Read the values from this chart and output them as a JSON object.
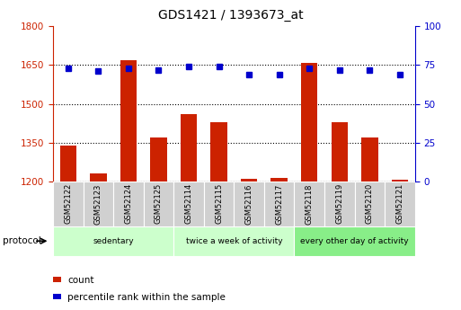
{
  "title": "GDS1421 / 1393673_at",
  "samples": [
    "GSM52122",
    "GSM52123",
    "GSM52124",
    "GSM52125",
    "GSM52114",
    "GSM52115",
    "GSM52116",
    "GSM52117",
    "GSM52118",
    "GSM52119",
    "GSM52120",
    "GSM52121"
  ],
  "bar_values": [
    1340,
    1230,
    1670,
    1370,
    1460,
    1430,
    1210,
    1215,
    1660,
    1430,
    1370,
    1205
  ],
  "dot_values": [
    73,
    71,
    73,
    72,
    74,
    74,
    69,
    69,
    73,
    72,
    72,
    69
  ],
  "ylim_left": [
    1200,
    1800
  ],
  "ylim_right": [
    0,
    100
  ],
  "yticks_left": [
    1200,
    1350,
    1500,
    1650,
    1800
  ],
  "yticks_right": [
    0,
    25,
    50,
    75,
    100
  ],
  "bar_color": "#cc2200",
  "dot_color": "#0000cc",
  "groups": [
    {
      "label": "sedentary",
      "start": 0,
      "end": 4,
      "color": "#ccffcc"
    },
    {
      "label": "twice a week of activity",
      "start": 4,
      "end": 8,
      "color": "#ccffcc"
    },
    {
      "label": "every other day of activity",
      "start": 8,
      "end": 12,
      "color": "#88ee88"
    }
  ],
  "protocol_label": "protocol",
  "legend_count": "count",
  "legend_percentile": "percentile rank within the sample",
  "axis_label_color_left": "#cc2200",
  "axis_label_color_right": "#0000cc",
  "sample_box_color": "#d0d0d0",
  "legend_square_size": 0.012,
  "fig_width": 5.13,
  "fig_height": 3.45,
  "dpi": 100
}
